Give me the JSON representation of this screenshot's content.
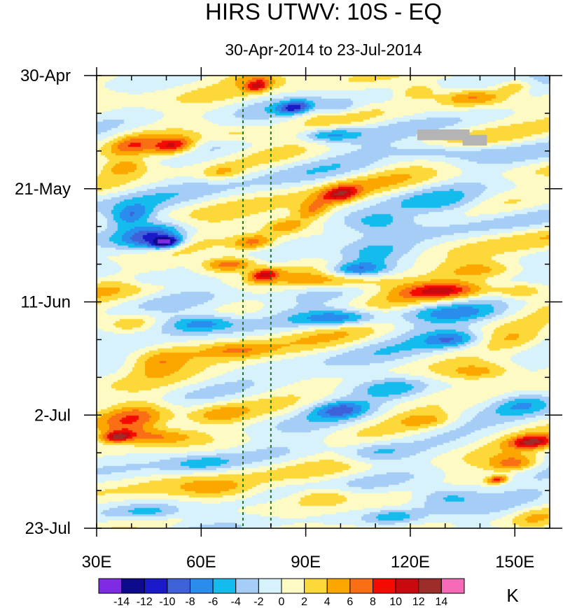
{
  "chart_data": {
    "type": "heatmap",
    "title": "HIRS UTWV: 10S - EQ",
    "subtitle": "30-Apr-2014 to 23-Jul-2014",
    "x_axis": {
      "label": "",
      "range": [
        30,
        160
      ],
      "ticks": [
        {
          "value": 30,
          "label": "30E"
        },
        {
          "value": 60,
          "label": "60E"
        },
        {
          "value": 90,
          "label": "90E"
        },
        {
          "value": 120,
          "label": "120E"
        },
        {
          "value": 150,
          "label": "150E"
        }
      ],
      "minor_step": 10
    },
    "y_axis": {
      "label": "",
      "range_days": [
        0,
        84
      ],
      "direction": "top-to-bottom",
      "ticks": [
        {
          "day": 0,
          "label": "30-Apr"
        },
        {
          "day": 21,
          "label": "21-May"
        },
        {
          "day": 42,
          "label": "11-Jun"
        },
        {
          "day": 63,
          "label": "2-Jul"
        },
        {
          "day": 84,
          "label": "23-Jul"
        }
      ],
      "minor_step_days": 7
    },
    "reference_lines": [
      {
        "longitude": 72,
        "style": "dashed",
        "color": "#1a7a1a"
      },
      {
        "longitude": 80,
        "style": "dashed",
        "color": "#1a7a1a"
      }
    ],
    "missing_data": [
      {
        "lon": [
          122,
          137
        ],
        "day": [
          10,
          12
        ]
      },
      {
        "lon": [
          135,
          142
        ],
        "day": [
          11,
          13
        ]
      }
    ],
    "colorbar": {
      "units": "K",
      "levels": [
        -14,
        -12,
        -10,
        -8,
        -6,
        -4,
        -2,
        0,
        2,
        4,
        6,
        8,
        10,
        12,
        14
      ],
      "level_labels": [
        "-14",
        "-12",
        "-10",
        "-8",
        "-6",
        "-4",
        "-2",
        "0",
        "2",
        "4",
        "6",
        "8",
        "10",
        "12",
        "14"
      ],
      "colors": [
        "#7f2be3",
        "#0d0a8c",
        "#1a1ac8",
        "#3e60d8",
        "#2a8cec",
        "#14bcee",
        "#a6cdf5",
        "#d8f2fc",
        "#fdfac4",
        "#fcd838",
        "#fba700",
        "#fa6e14",
        "#f50a00",
        "#c80a10",
        "#9c2d2a",
        "#f66ab8"
      ]
    },
    "anomaly_features": [
      {
        "lon": 52,
        "day": 13,
        "value": 10,
        "sx": 6,
        "sy": 1.6
      },
      {
        "lon": 40,
        "day": 13,
        "value": 6,
        "sx": 6,
        "sy": 2
      },
      {
        "lon": 76,
        "day": 2,
        "value": 8,
        "sx": 3,
        "sy": 1
      },
      {
        "lon": 76,
        "day": 0.5,
        "value": 5,
        "sx": 8,
        "sy": 1.5
      },
      {
        "lon": 95,
        "day": 6,
        "value": 4,
        "sx": 6,
        "sy": 1.5
      },
      {
        "lon": 122,
        "day": 3,
        "value": 5,
        "sx": 6,
        "sy": 1.5
      },
      {
        "lon": 138,
        "day": 4,
        "value": 7,
        "sx": 10,
        "sy": 1.6
      },
      {
        "lon": 150,
        "day": 2,
        "value": 5,
        "sx": 5,
        "sy": 1.3
      },
      {
        "lon": 87,
        "day": 6,
        "value": -9,
        "sx": 5,
        "sy": 1.2
      },
      {
        "lon": 98,
        "day": 6,
        "value": -6,
        "sx": 6,
        "sy": 1.3
      },
      {
        "lon": 97,
        "day": 11,
        "value": -7,
        "sx": 8,
        "sy": 1.3
      },
      {
        "lon": 128,
        "day": 14,
        "value": -5,
        "sx": 14,
        "sy": 1.6
      },
      {
        "lon": 70,
        "day": 11,
        "value": 4,
        "sx": 10,
        "sy": 1.5
      },
      {
        "lon": 38,
        "day": 17,
        "value": 5,
        "sx": 6,
        "sy": 1.5
      },
      {
        "lon": 66,
        "day": 18,
        "value": 4,
        "sx": 6,
        "sy": 1.4
      },
      {
        "lon": 100,
        "day": 22,
        "value": 9,
        "sx": 5,
        "sy": 1.5
      },
      {
        "lon": 92,
        "day": 25,
        "value": 6,
        "sx": 5,
        "sy": 2
      },
      {
        "lon": 84,
        "day": 28,
        "value": 6,
        "sx": 6,
        "sy": 1.5
      },
      {
        "lon": 75,
        "day": 31,
        "value": 7,
        "sx": 6,
        "sy": 1.5
      },
      {
        "lon": 46,
        "day": 30,
        "value": -10,
        "sx": 9,
        "sy": 2.5
      },
      {
        "lon": 50,
        "day": 31,
        "value": -12,
        "sx": 4,
        "sy": 1
      },
      {
        "lon": 40,
        "day": 26,
        "value": -7,
        "sx": 6,
        "sy": 2
      },
      {
        "lon": 110,
        "day": 27,
        "value": -5,
        "sx": 10,
        "sy": 2
      },
      {
        "lon": 130,
        "day": 24,
        "value": -4,
        "sx": 12,
        "sy": 2
      },
      {
        "lon": 68,
        "day": 35,
        "value": 10,
        "sx": 8,
        "sy": 1.5
      },
      {
        "lon": 78,
        "day": 37,
        "value": 9,
        "sx": 4,
        "sy": 1.2
      },
      {
        "lon": 100,
        "day": 38,
        "value": 7,
        "sx": 16,
        "sy": 1.6
      },
      {
        "lon": 130,
        "day": 40,
        "value": 9,
        "sx": 12,
        "sy": 1.5
      },
      {
        "lon": 152,
        "day": 40,
        "value": 6,
        "sx": 8,
        "sy": 1.5
      },
      {
        "lon": 105,
        "day": 36,
        "value": -8,
        "sx": 8,
        "sy": 1.5
      },
      {
        "lon": 110,
        "day": 33,
        "value": -4,
        "sx": 10,
        "sy": 2
      },
      {
        "lon": 140,
        "day": 36,
        "value": 4,
        "sx": 10,
        "sy": 1.6
      },
      {
        "lon": 45,
        "day": 38,
        "value": -4,
        "sx": 8,
        "sy": 1.5
      },
      {
        "lon": 60,
        "day": 46,
        "value": -7,
        "sx": 10,
        "sy": 1.6
      },
      {
        "lon": 100,
        "day": 45,
        "value": -9,
        "sx": 12,
        "sy": 1.6
      },
      {
        "lon": 130,
        "day": 44,
        "value": -5,
        "sx": 16,
        "sy": 1.6
      },
      {
        "lon": 132,
        "day": 49,
        "value": -7,
        "sx": 8,
        "sy": 1.6
      },
      {
        "lon": 40,
        "day": 46,
        "value": 5,
        "sx": 8,
        "sy": 2
      },
      {
        "lon": 48,
        "day": 53,
        "value": 5,
        "sx": 8,
        "sy": 2.5
      },
      {
        "lon": 70,
        "day": 51,
        "value": 4,
        "sx": 10,
        "sy": 1.5
      },
      {
        "lon": 150,
        "day": 49,
        "value": 3,
        "sx": 8,
        "sy": 2
      },
      {
        "lon": 40,
        "day": 64,
        "value": 7,
        "sx": 9,
        "sy": 3.5
      },
      {
        "lon": 48,
        "day": 67,
        "value": 7,
        "sx": 12,
        "sy": 1.6
      },
      {
        "lon": 36,
        "day": 67,
        "value": 9,
        "sx": 4,
        "sy": 1
      },
      {
        "lon": 65,
        "day": 63,
        "value": 4,
        "sx": 8,
        "sy": 2
      },
      {
        "lon": 100,
        "day": 62,
        "value": -7,
        "sx": 8,
        "sy": 1.6
      },
      {
        "lon": 115,
        "day": 58,
        "value": -5,
        "sx": 10,
        "sy": 2
      },
      {
        "lon": 140,
        "day": 55,
        "value": 5,
        "sx": 10,
        "sy": 1.6
      },
      {
        "lon": 125,
        "day": 64,
        "value": 4,
        "sx": 8,
        "sy": 1.5
      },
      {
        "lon": 152,
        "day": 61,
        "value": -5,
        "sx": 8,
        "sy": 2
      },
      {
        "lon": 155,
        "day": 68,
        "value": 10,
        "sx": 6,
        "sy": 1.2
      },
      {
        "lon": 150,
        "day": 72,
        "value": 7,
        "sx": 7,
        "sy": 1.5
      },
      {
        "lon": 145,
        "day": 75,
        "value": 9,
        "sx": 3,
        "sy": 0.8
      },
      {
        "lon": 110,
        "day": 70,
        "value": -5,
        "sx": 10,
        "sy": 2
      },
      {
        "lon": 60,
        "day": 72,
        "value": -4,
        "sx": 10,
        "sy": 1.6
      },
      {
        "lon": 65,
        "day": 77,
        "value": 5,
        "sx": 12,
        "sy": 2
      },
      {
        "lon": 95,
        "day": 78,
        "value": 4,
        "sx": 8,
        "sy": 1.6
      },
      {
        "lon": 45,
        "day": 81,
        "value": -5,
        "sx": 10,
        "sy": 1.5
      },
      {
        "lon": 130,
        "day": 78,
        "value": -6,
        "sx": 10,
        "sy": 2
      },
      {
        "lon": 115,
        "day": 82,
        "value": -5,
        "sx": 8,
        "sy": 1.5
      },
      {
        "lon": 155,
        "day": 82,
        "value": 3,
        "sx": 6,
        "sy": 2
      }
    ]
  }
}
